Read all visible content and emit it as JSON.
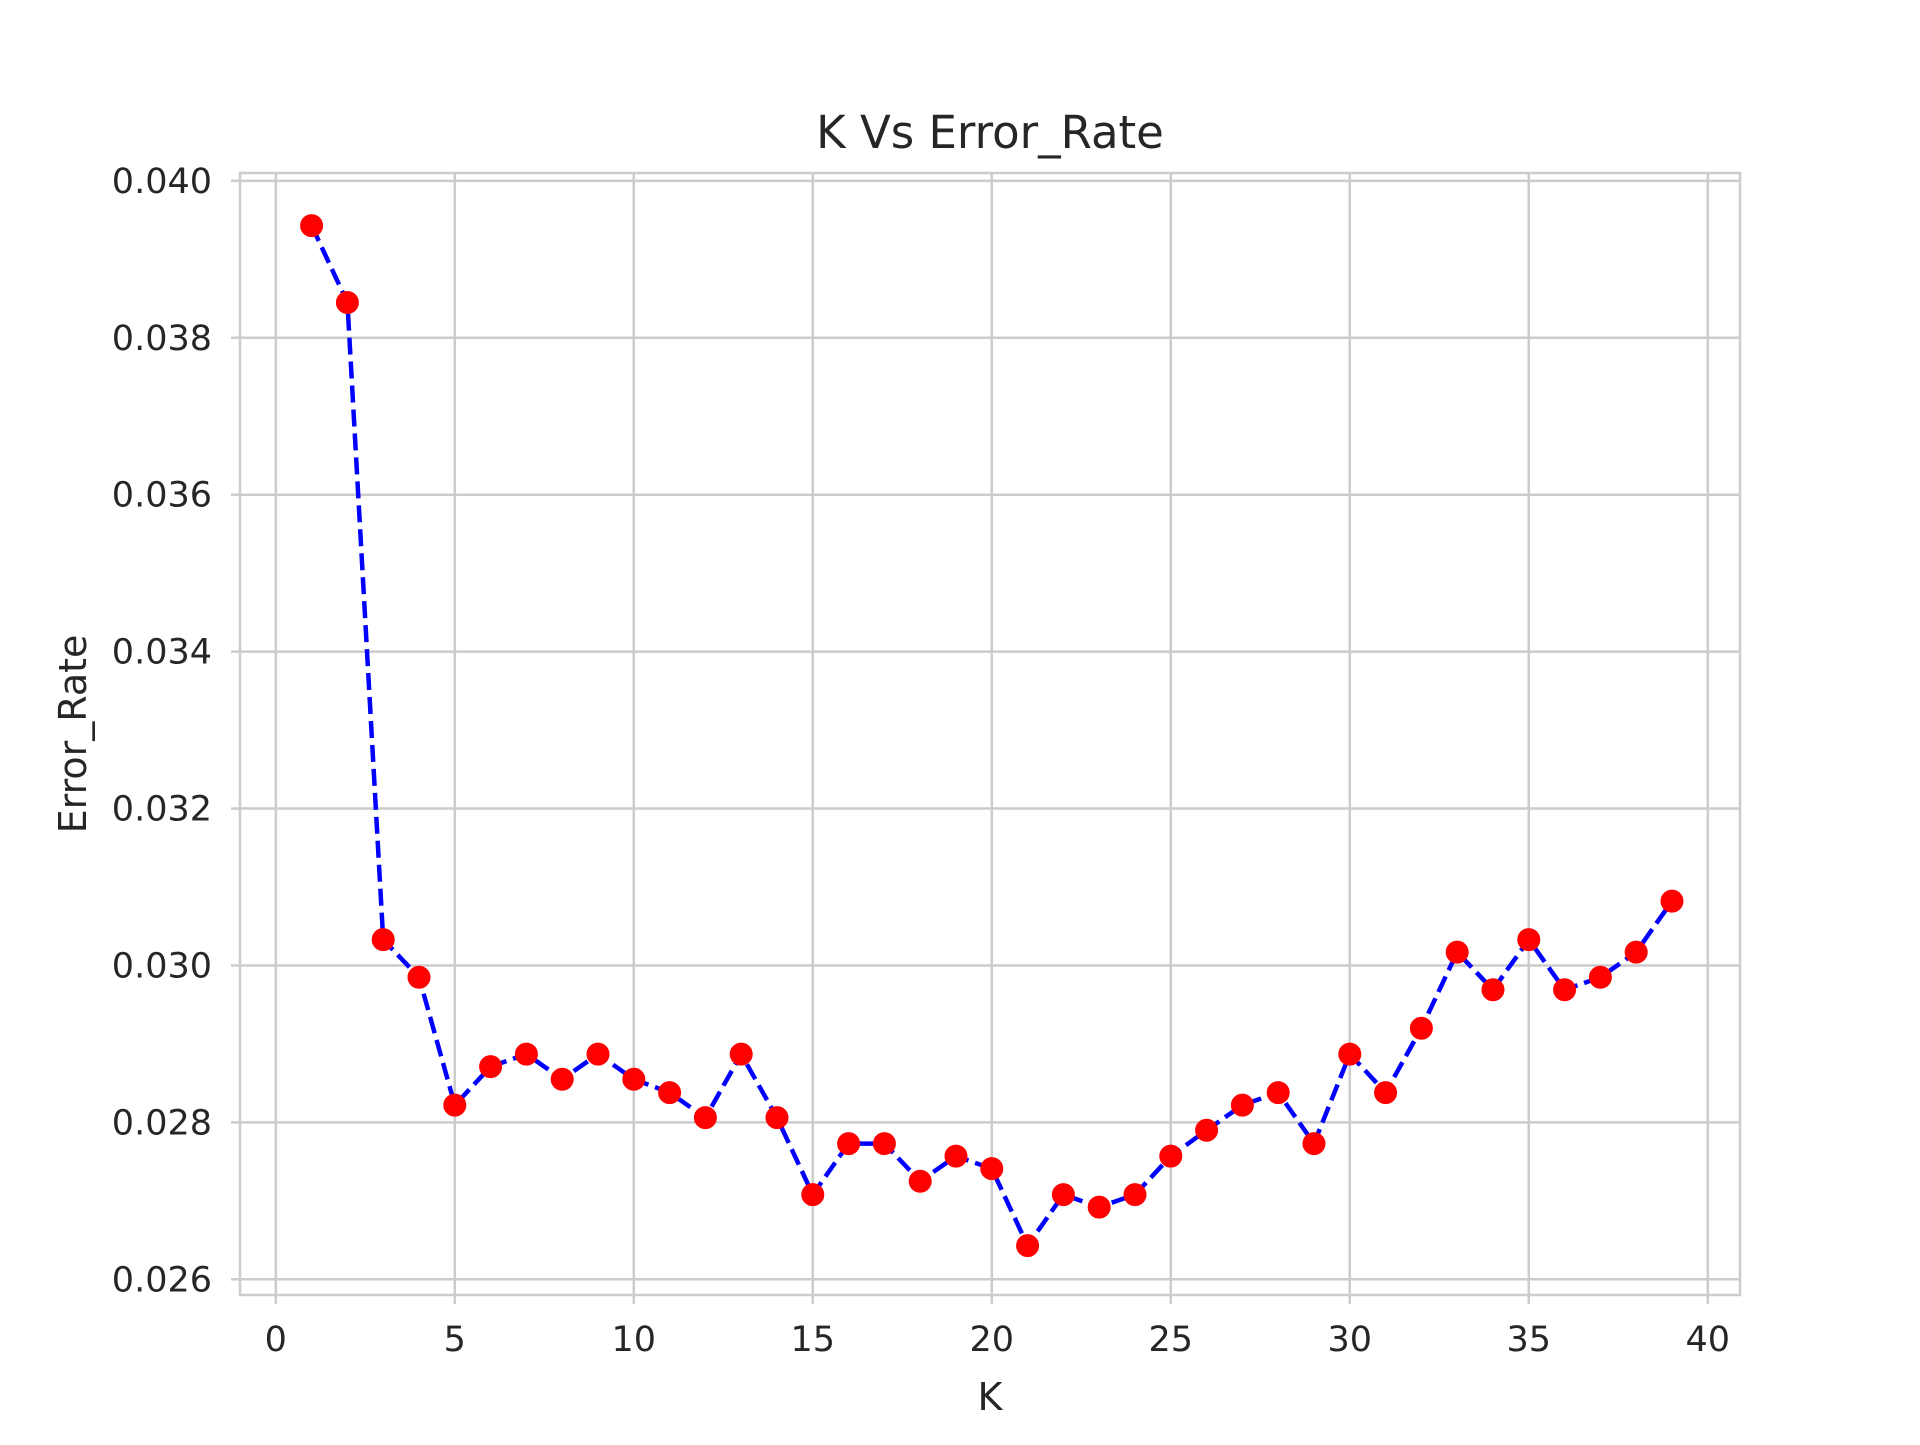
{
  "chart_data": {
    "type": "line",
    "title": "K Vs Error_Rate",
    "xlabel": "K",
    "ylabel": "Error_Rate",
    "xlim": [
      -1,
      40.9
    ],
    "ylim": [
      0.0258,
      0.0401
    ],
    "xticks": [
      0,
      5,
      10,
      15,
      20,
      25,
      30,
      35,
      40
    ],
    "xtick_labels": [
      "0",
      "5",
      "10",
      "15",
      "20",
      "25",
      "30",
      "35",
      "40"
    ],
    "yticks": [
      0.026,
      0.028,
      0.03,
      0.032,
      0.034,
      0.036,
      0.038,
      0.04
    ],
    "ytick_labels": [
      "0.026",
      "0.028",
      "0.030",
      "0.032",
      "0.034",
      "0.036",
      "0.038",
      "0.040"
    ],
    "grid": true,
    "series": [
      {
        "line_color": "#0000ff",
        "line_style": "dashed",
        "marker_color": "#ff0000",
        "marker": "circle",
        "x": [
          1,
          2,
          3,
          4,
          5,
          6,
          7,
          8,
          9,
          10,
          11,
          12,
          13,
          14,
          15,
          16,
          17,
          18,
          19,
          20,
          21,
          22,
          23,
          24,
          25,
          26,
          27,
          28,
          29,
          30,
          31,
          32,
          33,
          34,
          35,
          36,
          37,
          38,
          39
        ],
        "values": [
          0.03943,
          0.03845,
          0.03033,
          0.02985,
          0.02822,
          0.02871,
          0.02887,
          0.02855,
          0.02887,
          0.02855,
          0.02838,
          0.02806,
          0.02887,
          0.02806,
          0.02708,
          0.02773,
          0.02773,
          0.02725,
          0.02757,
          0.02741,
          0.02643,
          0.02708,
          0.02692,
          0.02708,
          0.02757,
          0.0279,
          0.02822,
          0.02838,
          0.02773,
          0.02887,
          0.02838,
          0.0292,
          0.03017,
          0.02969,
          0.03033,
          0.02969,
          0.02985,
          0.03017,
          0.03082
        ]
      }
    ]
  }
}
